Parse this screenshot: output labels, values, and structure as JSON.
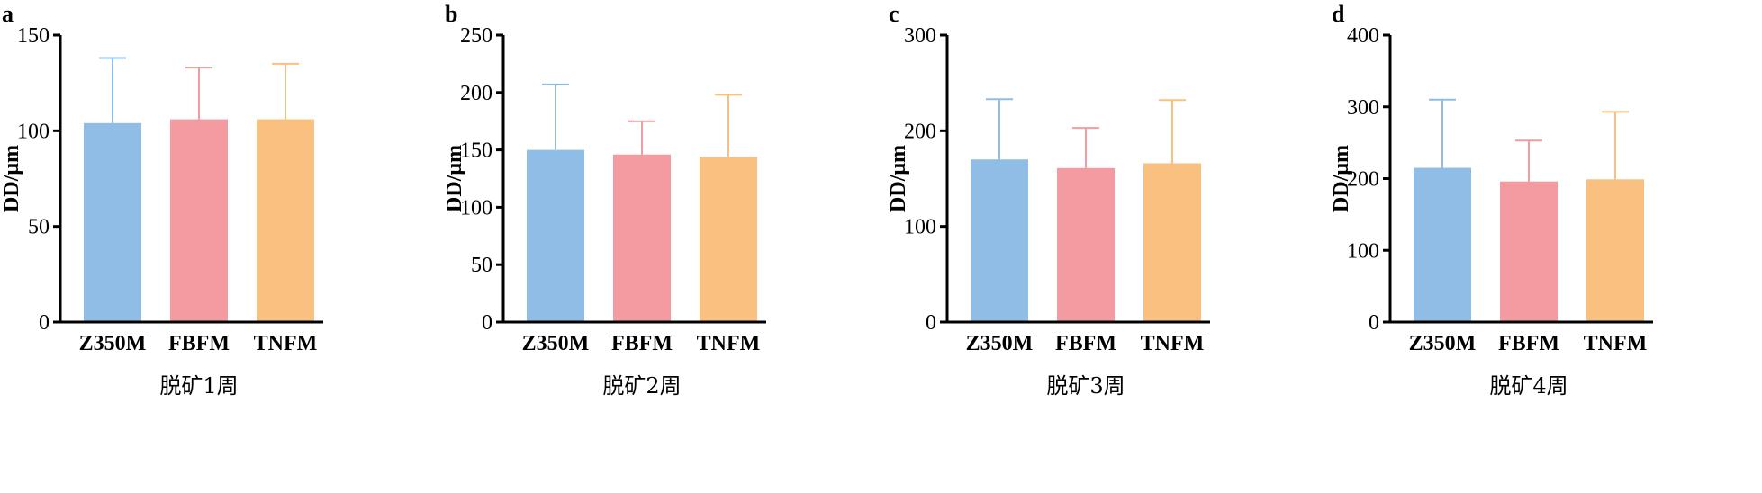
{
  "chart_data": [
    {
      "type": "bar",
      "panel": "a",
      "categories": [
        "Z350M",
        "FBFM",
        "TNFM"
      ],
      "values": [
        104,
        106,
        106
      ],
      "errors": [
        34,
        27,
        29
      ],
      "ylabel": "DD/μm",
      "xlabel": "脱矿1周",
      "ylim": [
        0,
        150
      ],
      "yticks": [
        0,
        50,
        100,
        150
      ],
      "colors": [
        "#8fbde6",
        "#f39ba0",
        "#f9c07f"
      ],
      "error_colors": [
        "#8fbde6",
        "#f39ba0",
        "#f9c07f"
      ]
    },
    {
      "type": "bar",
      "panel": "b",
      "categories": [
        "Z350M",
        "FBFM",
        "TNFM"
      ],
      "values": [
        150,
        146,
        144
      ],
      "errors": [
        57,
        29,
        54
      ],
      "ylabel": "DD/μm",
      "xlabel": "脱矿2周",
      "ylim": [
        0,
        250
      ],
      "yticks": [
        0,
        50,
        100,
        150,
        200,
        250
      ],
      "colors": [
        "#8fbde6",
        "#f39ba0",
        "#f9c07f"
      ],
      "error_colors": [
        "#8fbde6",
        "#f39ba0",
        "#f9c07f"
      ]
    },
    {
      "type": "bar",
      "panel": "c",
      "categories": [
        "Z350M",
        "FBFM",
        "TNFM"
      ],
      "values": [
        170,
        161,
        166
      ],
      "errors": [
        63,
        42,
        66
      ],
      "ylabel": "DD/μm",
      "xlabel": "脱矿3周",
      "ylim": [
        0,
        300
      ],
      "yticks": [
        0,
        100,
        200,
        300
      ],
      "colors": [
        "#8fbde6",
        "#f39ba0",
        "#f9c07f"
      ],
      "error_colors": [
        "#8fbde6",
        "#f39ba0",
        "#f9c07f"
      ]
    },
    {
      "type": "bar",
      "panel": "d",
      "categories": [
        "Z350M",
        "FBFM",
        "TNFM"
      ],
      "values": [
        215,
        196,
        199
      ],
      "errors": [
        95,
        57,
        94
      ],
      "ylabel": "DD/μm",
      "xlabel": "脱矿4周",
      "ylim": [
        0,
        400
      ],
      "yticks": [
        0,
        100,
        200,
        300,
        400
      ],
      "colors": [
        "#8fbde6",
        "#f39ba0",
        "#f9c07f"
      ],
      "error_colors": [
        "#8fbde6",
        "#f39ba0",
        "#f9c07f"
      ]
    }
  ]
}
